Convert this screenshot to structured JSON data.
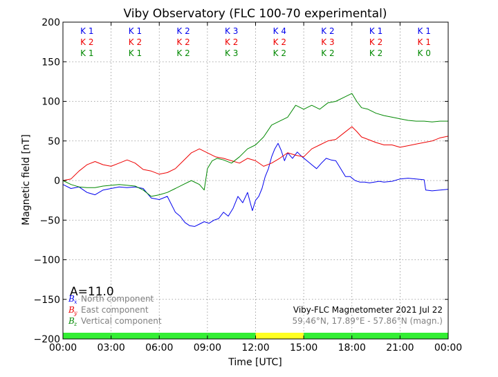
{
  "chart_data": {
    "type": "line",
    "title": "Viby Observatory (FLC 100-70 experimental)",
    "xlabel": "Time [UTC]",
    "ylabel": "Magnetic field [nT]",
    "xlim": [
      0,
      24
    ],
    "ylim": [
      -200,
      200
    ],
    "grid": true,
    "x_ticks": [
      0,
      3,
      6,
      9,
      12,
      15,
      18,
      21,
      24
    ],
    "x_tick_labels": [
      "00:00",
      "03:00",
      "06:00",
      "09:00",
      "12:00",
      "15:00",
      "18:00",
      "21:00",
      "00:00"
    ],
    "y_ticks": [
      -200,
      -150,
      -100,
      -50,
      0,
      50,
      100,
      150,
      200
    ],
    "y_tick_labels": [
      "−200",
      "−150",
      "−100",
      "−50",
      "0",
      "50",
      "100",
      "150",
      "200"
    ],
    "k_index_rows": [
      {
        "color": "#0000ee",
        "values": [
          "K 1",
          "K 1",
          "K 2",
          "K 3",
          "K 4",
          "K 2",
          "K 1",
          "K 1"
        ]
      },
      {
        "color": "#ee0000",
        "values": [
          "K 2",
          "K 2",
          "K 2",
          "K 2",
          "K 2",
          "K 3",
          "K 2",
          "K 1"
        ]
      },
      {
        "color": "#008800",
        "values": [
          "K 1",
          "K 1",
          "K 2",
          "K 3",
          "K 2",
          "K 2",
          "K 2",
          "K 0"
        ]
      }
    ],
    "activity_bar": [
      {
        "from": 0,
        "to": 12,
        "color": "#33ee33"
      },
      {
        "from": 12,
        "to": 15,
        "color": "#ffff22"
      },
      {
        "from": 15,
        "to": 24,
        "color": "#33ee33"
      }
    ],
    "a_index_label": "A=11.0",
    "legend": [
      {
        "symbol": "B",
        "sub": "x",
        "label": "North component",
        "color": "#0000ee"
      },
      {
        "symbol": "B",
        "sub": "y",
        "label": "East component",
        "color": "#ee0000"
      },
      {
        "symbol": "B",
        "sub": "z",
        "label": "Vertical component",
        "color": "#008800"
      }
    ],
    "legend_position": "lower-left",
    "annotation_line1": "Viby-FLC Magnetometer 2021 Jul 22",
    "annotation_line2": "59.46°N, 17.89°E - 57.86°N (magn.)",
    "series": [
      {
        "name": "North component",
        "color": "#0000ee",
        "x": [
          0,
          0.5,
          1,
          1.5,
          2,
          2.5,
          3,
          3.5,
          4,
          4.5,
          5,
          5.5,
          6,
          6.5,
          7,
          7.3,
          7.6,
          7.9,
          8.2,
          8.5,
          8.8,
          9.1,
          9.4,
          9.7,
          10,
          10.3,
          10.6,
          10.9,
          11.2,
          11.5,
          11.8,
          12,
          12.2,
          12.4,
          12.6,
          12.8,
          13,
          13.2,
          13.4,
          13.6,
          13.8,
          14,
          14.3,
          14.6,
          14.9,
          15.2,
          15.5,
          15.8,
          16.1,
          16.4,
          16.7,
          17,
          17.3,
          17.6,
          17.9,
          18.2,
          18.5,
          18.8,
          19.1,
          19.4,
          19.7,
          20,
          20.5,
          21,
          21.5,
          22,
          22.5,
          22.6,
          23,
          23.5,
          24
        ],
        "y": [
          -5,
          -10,
          -8,
          -15,
          -18,
          -12,
          -10,
          -8,
          -9,
          -8,
          -10,
          -22,
          -24,
          -20,
          -40,
          -45,
          -53,
          -57,
          -58,
          -55,
          -52,
          -54,
          -50,
          -48,
          -40,
          -45,
          -35,
          -20,
          -28,
          -15,
          -38,
          -25,
          -20,
          -10,
          5,
          15,
          30,
          40,
          47,
          38,
          25,
          35,
          28,
          36,
          30,
          25,
          20,
          15,
          22,
          28,
          26,
          25,
          15,
          5,
          5,
          0,
          -2,
          -2,
          -3,
          -2,
          -1,
          -2,
          -1,
          2,
          3,
          2,
          1,
          -12,
          -13,
          -12,
          -11
        ]
      },
      {
        "name": "East component",
        "color": "#ee0000",
        "x": [
          0,
          0.5,
          1,
          1.5,
          2,
          2.5,
          3,
          3.5,
          4,
          4.5,
          5,
          5.5,
          6,
          6.5,
          7,
          7.5,
          8,
          8.5,
          9,
          9.5,
          10,
          10.5,
          11,
          11.5,
          12,
          12.5,
          13,
          13.5,
          14,
          14.5,
          15,
          15.5,
          16,
          16.5,
          17,
          17.5,
          18,
          18.3,
          18.6,
          19,
          19.5,
          20,
          20.5,
          21,
          21.5,
          22,
          22.5,
          23,
          23.5,
          24
        ],
        "y": [
          0,
          2,
          12,
          20,
          24,
          20,
          18,
          22,
          26,
          22,
          14,
          12,
          8,
          10,
          15,
          25,
          35,
          40,
          35,
          30,
          28,
          25,
          22,
          28,
          25,
          18,
          22,
          28,
          35,
          32,
          30,
          40,
          45,
          50,
          52,
          60,
          68,
          62,
          55,
          52,
          48,
          45,
          45,
          42,
          44,
          46,
          48,
          50,
          54,
          56
        ]
      },
      {
        "name": "Vertical component",
        "color": "#008800",
        "x": [
          0,
          0.5,
          1,
          1.5,
          2,
          2.5,
          3,
          3.5,
          4,
          4.5,
          5,
          5.5,
          6,
          6.5,
          7,
          7.5,
          8,
          8.5,
          8.8,
          9,
          9.3,
          9.6,
          10,
          10.5,
          11,
          11.5,
          12,
          12.5,
          13,
          13.5,
          14,
          14.5,
          15,
          15.5,
          16,
          16.5,
          17,
          17.5,
          18,
          18.3,
          18.6,
          19,
          19.5,
          20,
          20.5,
          21,
          21.5,
          22,
          22.5,
          23,
          23.5,
          24
        ],
        "y": [
          0,
          -5,
          -8,
          -9,
          -9,
          -7,
          -6,
          -5,
          -6,
          -7,
          -12,
          -20,
          -18,
          -15,
          -10,
          -5,
          0,
          -5,
          -12,
          15,
          25,
          28,
          26,
          22,
          30,
          40,
          45,
          55,
          70,
          75,
          80,
          95,
          90,
          95,
          90,
          98,
          100,
          105,
          110,
          100,
          92,
          90,
          85,
          82,
          80,
          78,
          76,
          75,
          75,
          74,
          75,
          75
        ]
      }
    ]
  }
}
